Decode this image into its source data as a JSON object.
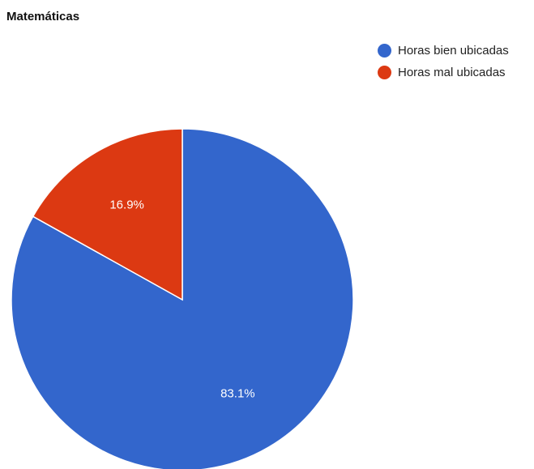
{
  "chart_data": {
    "type": "pie",
    "title": "Matemáticas",
    "legend_position": "top-right",
    "slices": [
      {
        "name": "Horas bien ubicadas",
        "value": 83.1,
        "label": "83.1%",
        "color": "#3366cc"
      },
      {
        "name": "Horas mal ubicadas",
        "value": 16.9,
        "label": "16.9%",
        "color": "#dc3912"
      }
    ]
  }
}
